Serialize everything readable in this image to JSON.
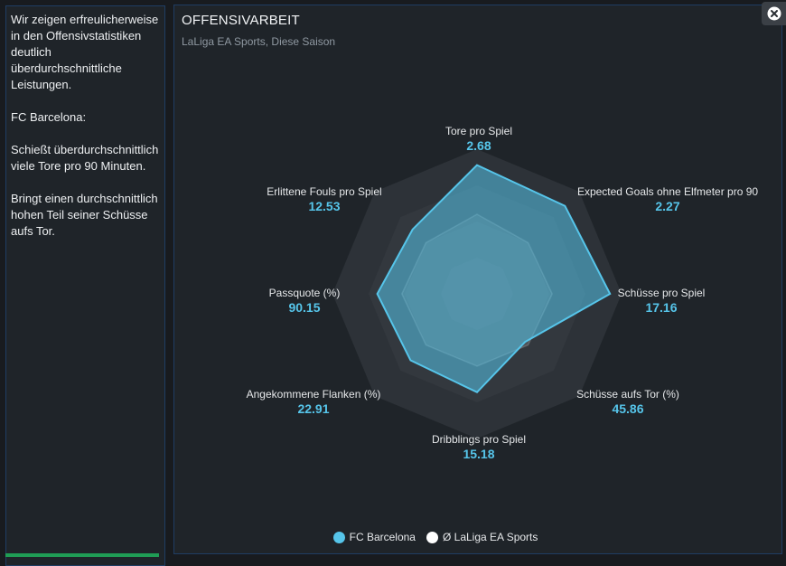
{
  "sidebar": {
    "paragraphs": [
      "Wir zeigen erfreulicherweise in den Offensivstatistiken deutlich überdurchschnittliche Leistungen.",
      "FC Barcelona:",
      "Schießt überdurchschnittlich viele Tore pro 90 Minuten.",
      "Bringt einen durchschnittlich hohen Teil seiner Schüsse aufs Tor."
    ]
  },
  "panel": {
    "title": "OFFENSIVARBEIT",
    "subtitle": "LaLiga EA Sports, Diese Saison",
    "close_icon": "close-icon"
  },
  "chart_data": {
    "type": "radar",
    "title": "OFFENSIVARBEIT",
    "subtitle": "LaLiga EA Sports, Diese Saison",
    "axes": [
      {
        "label": "Tore pro Spiel",
        "value": "2.68",
        "team_score": 0.89,
        "league_score": 0.55
      },
      {
        "label": "Expected Goals ohne Elfmeter pro 90",
        "value": "2.27",
        "team_score": 0.86,
        "league_score": 0.5
      },
      {
        "label": "Schüsse pro Spiel",
        "value": "17.16",
        "team_score": 0.92,
        "league_score": 0.52
      },
      {
        "label": "Schüsse aufs Tor (%)",
        "value": "45.86",
        "team_score": 0.47,
        "league_score": 0.5
      },
      {
        "label": "Dribblings pro Spiel",
        "value": "15.18",
        "team_score": 0.68,
        "league_score": 0.5
      },
      {
        "label": "Angekommene Flanken (%)",
        "value": "22.91",
        "team_score": 0.65,
        "league_score": 0.5
      },
      {
        "label": "Passquote (%)",
        "value": "90.15",
        "team_score": 0.69,
        "league_score": 0.52
      },
      {
        "label": "Erlittene Fouls pro Spiel",
        "value": "12.53",
        "team_score": 0.63,
        "league_score": 0.5
      }
    ],
    "series": [
      {
        "name": "FC Barcelona",
        "color": "#56c5ea"
      },
      {
        "name": "Ø LaLiga EA Sports",
        "color": "#ffffff"
      }
    ],
    "rings": 4
  }
}
